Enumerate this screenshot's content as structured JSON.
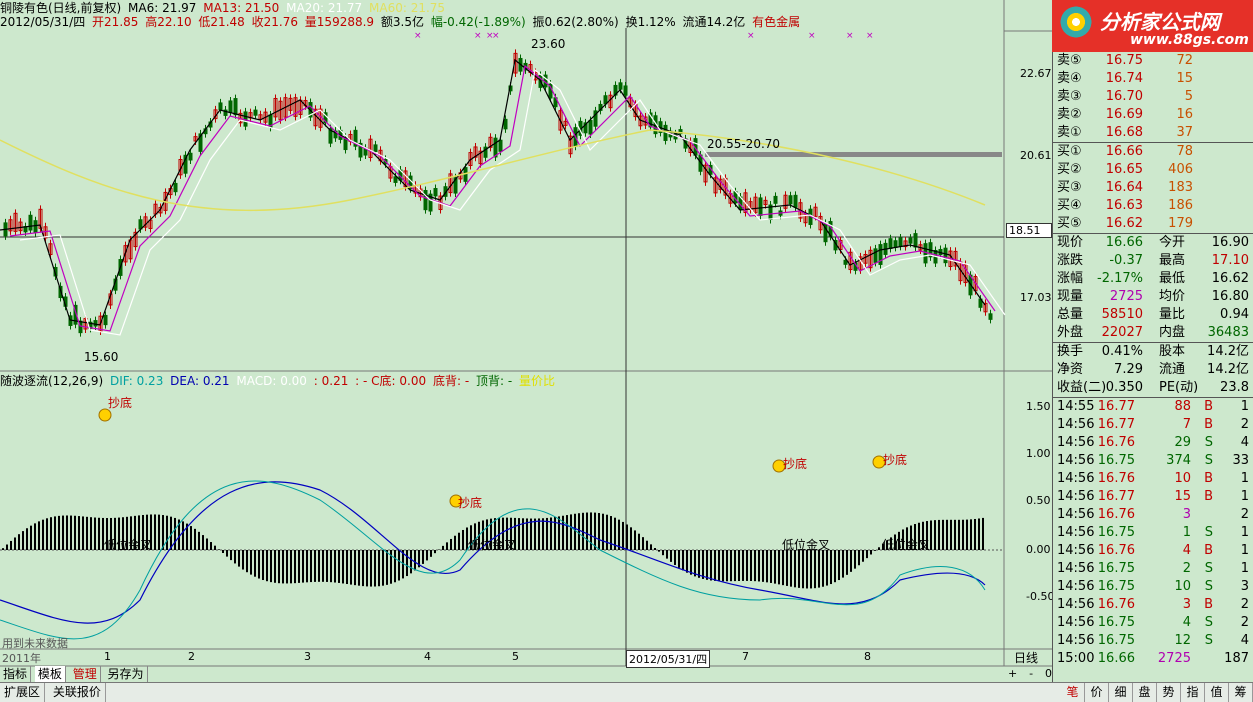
{
  "header": {
    "title": "铜陵有色(日线,前复权)",
    "ma6": "MA6: 21.97",
    "ma13": "MA13: 21.50",
    "ma20": "MA20: 21.77",
    "ma60": "MA60: 21.75",
    "date": "2012/05/31/四",
    "open": "开21.85",
    "high": "高22.10",
    "low": "低21.48",
    "close": "收21.76",
    "volume": "量159288.9",
    "amount": "额3.5亿",
    "change": "幅-0.42(-1.89%)",
    "amplitude": "振0.62(2.80%)",
    "turnover": "换1.12%",
    "float": "流通14.2亿",
    "sector": "有色金属"
  },
  "price_axis": [
    "22.67",
    "20.61",
    "18.51",
    "17.03"
  ],
  "price_labels": {
    "high": "23.60",
    "low": "15.60",
    "range": "20.55-20.70"
  },
  "indicator": {
    "name": "随波逐流(12,26,9)",
    "dif": "DIF: 0.23",
    "dea": "DEA: 0.21",
    "macd": "MACD: 0.00",
    "v1": ": 0.21",
    "c_bottom": ": - C底: 0.00",
    "bottom_div": "底背: -",
    "top_div": "顶背: -",
    "extra": "量价比",
    "axis": [
      "1.50",
      "1.00",
      "0.50",
      "0.00",
      "-0.50"
    ],
    "signals": [
      "抄底",
      "抄底",
      "抄底",
      "抄底"
    ],
    "cross_label": "低位金叉",
    "warning": "用到未来数据"
  },
  "time_axis": [
    "2011年",
    "1",
    "2",
    "3",
    "4",
    "5",
    "2012/05/31/四",
    "7",
    "8"
  ],
  "period": "日线",
  "tabs": [
    "指标",
    "模板",
    "管理",
    "另存为"
  ],
  "bottom_left": [
    "扩展区",
    "关联报价"
  ],
  "bottom_right": [
    "笔",
    "价",
    "细",
    "盘",
    "势",
    "指",
    "值",
    "筹"
  ],
  "side": {
    "logo_text": "分析家公式网",
    "logo_url": "www.88gs.com",
    "sell": [
      {
        "label": "卖⑤",
        "price": "16.75",
        "vol": "72"
      },
      {
        "label": "卖④",
        "price": "16.74",
        "vol": "15"
      },
      {
        "label": "卖③",
        "price": "16.70",
        "vol": "5"
      },
      {
        "label": "卖②",
        "price": "16.69",
        "vol": "16"
      },
      {
        "label": "卖①",
        "price": "16.68",
        "vol": "37"
      }
    ],
    "buy": [
      {
        "label": "买①",
        "price": "16.66",
        "vol": "78"
      },
      {
        "label": "买②",
        "price": "16.65",
        "vol": "406"
      },
      {
        "label": "买③",
        "price": "16.64",
        "vol": "183"
      },
      {
        "label": "买④",
        "price": "16.63",
        "vol": "186"
      },
      {
        "label": "买⑤",
        "price": "16.62",
        "vol": "179"
      }
    ],
    "stats": [
      [
        "现价",
        "16.66",
        "今开",
        "16.90"
      ],
      [
        "涨跌",
        "-0.37",
        "最高",
        "17.10"
      ],
      [
        "涨幅",
        "-2.17%",
        "最低",
        "16.62"
      ],
      [
        "现量",
        "2725",
        "均价",
        "16.80"
      ],
      [
        "总量",
        "58510",
        "量比",
        "0.94"
      ],
      [
        "外盘",
        "22027",
        "内盘",
        "36483"
      ]
    ],
    "stats2": [
      [
        "换手",
        "0.41%",
        "股本",
        "14.2亿"
      ],
      [
        "净资",
        "7.29",
        "流通",
        "14.2亿"
      ],
      [
        "收益(二)",
        "0.350",
        "PE(动)",
        "23.8"
      ]
    ],
    "ticks": [
      [
        "14:55",
        "16.77",
        "88",
        "B",
        "1"
      ],
      [
        "14:56",
        "16.77",
        "7",
        "B",
        "2"
      ],
      [
        "14:56",
        "16.76",
        "29",
        "S",
        "4"
      ],
      [
        "14:56",
        "16.75",
        "374",
        "S",
        "33"
      ],
      [
        "14:56",
        "16.76",
        "10",
        "B",
        "1"
      ],
      [
        "14:56",
        "16.77",
        "15",
        "B",
        "1"
      ],
      [
        "14:56",
        "16.76",
        "3",
        "",
        "2"
      ],
      [
        "14:56",
        "16.75",
        "1",
        "S",
        "1"
      ],
      [
        "14:56",
        "16.76",
        "4",
        "B",
        "1"
      ],
      [
        "14:56",
        "16.75",
        "2",
        "S",
        "1"
      ],
      [
        "14:56",
        "16.75",
        "10",
        "S",
        "3"
      ],
      [
        "14:56",
        "16.76",
        "3",
        "B",
        "2"
      ],
      [
        "14:56",
        "16.75",
        "4",
        "S",
        "2"
      ],
      [
        "14:56",
        "16.75",
        "12",
        "S",
        "4"
      ],
      [
        "15:00",
        "16.66",
        "2725",
        "",
        "187"
      ]
    ]
  },
  "colors": {
    "bg": "#cde8cd",
    "up": "#c00000",
    "down": "#006600",
    "ma6": "#000000",
    "ma13": "#c000c0",
    "ma20": "#ffffff",
    "ma60": "#e0e060"
  }
}
